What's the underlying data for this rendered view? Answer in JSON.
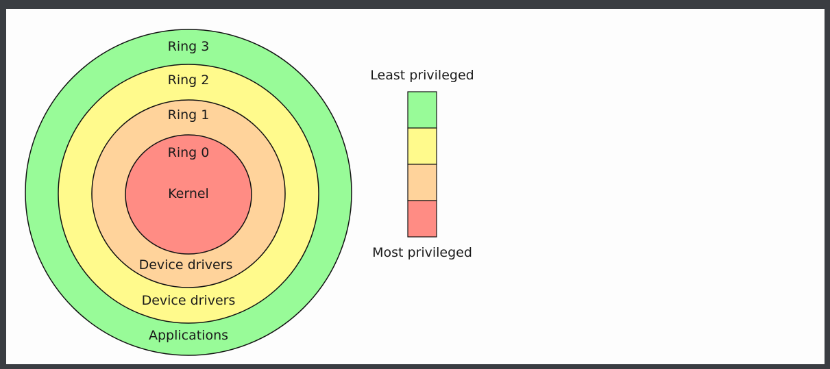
{
  "diagram": {
    "rings": [
      {
        "key": "ring3",
        "label": "Ring 3",
        "sublabel": "Applications",
        "color": "#98fb98"
      },
      {
        "key": "ring2",
        "label": "Ring 2",
        "sublabel": "Device drivers",
        "color": "#fffa8c"
      },
      {
        "key": "ring1",
        "label": "Ring 1",
        "sublabel": "Device drivers",
        "color": "#ffd39b"
      },
      {
        "key": "ring0",
        "label": "Ring 0",
        "sublabel": "Kernel",
        "color": "#ff8c84"
      }
    ],
    "legend": {
      "top_label": "Least privileged",
      "bottom_label": "Most privileged",
      "colors": [
        "#98fb98",
        "#fffa8c",
        "#ffd39b",
        "#ff8c84"
      ]
    }
  }
}
